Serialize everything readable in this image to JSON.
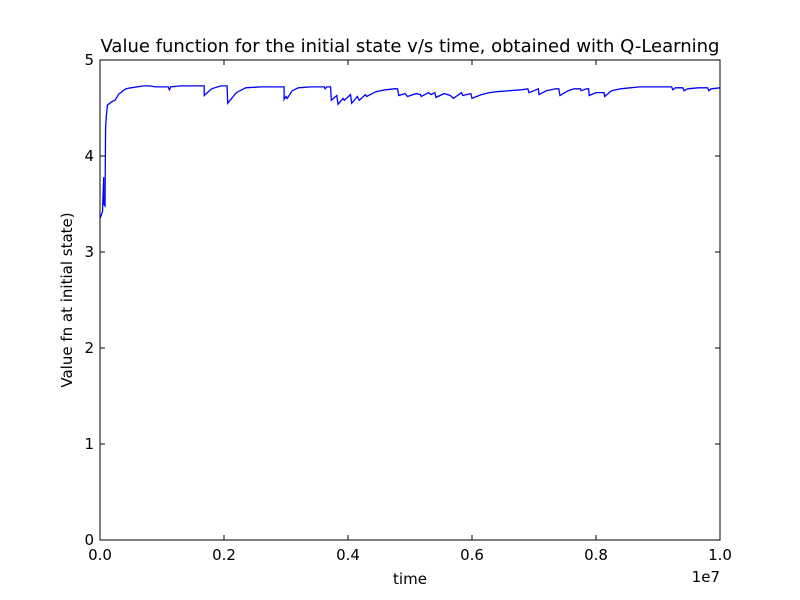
{
  "chart_data": {
    "type": "line",
    "title": "Value function for the initial state v/s time, obtained with Q-Learning",
    "xlabel": "time",
    "ylabel": "Value fn at initial state)",
    "x_offset_label": "1e7",
    "xlim": [
      0.0,
      1.0
    ],
    "ylim": [
      0,
      5
    ],
    "x_ticks": [
      "0.0",
      "0.2",
      "0.4",
      "0.6",
      "0.8",
      "1.0"
    ],
    "y_ticks": [
      "0",
      "1",
      "2",
      "3",
      "4",
      "5"
    ],
    "grid": false,
    "series": [
      {
        "color": "#0000ff",
        "points": [
          [
            0.0,
            3.35
          ],
          [
            0.004,
            3.42
          ],
          [
            0.006,
            3.78
          ],
          [
            0.006,
            3.5
          ],
          [
            0.008,
            3.48
          ],
          [
            0.009,
            4.3
          ],
          [
            0.01,
            4.4
          ],
          [
            0.012,
            4.53
          ],
          [
            0.016,
            4.55
          ],
          [
            0.02,
            4.57
          ],
          [
            0.024,
            4.58
          ],
          [
            0.026,
            4.6
          ],
          [
            0.028,
            4.62
          ],
          [
            0.031,
            4.65
          ],
          [
            0.034,
            4.66
          ],
          [
            0.037,
            4.68
          ],
          [
            0.042,
            4.7
          ],
          [
            0.05,
            4.71
          ],
          [
            0.06,
            4.72
          ],
          [
            0.07,
            4.73
          ],
          [
            0.08,
            4.73
          ],
          [
            0.09,
            4.72
          ],
          [
            0.1,
            4.72
          ],
          [
            0.11,
            4.72
          ],
          [
            0.112,
            4.69
          ],
          [
            0.114,
            4.72
          ],
          [
            0.13,
            4.73
          ],
          [
            0.145,
            4.73
          ],
          [
            0.16,
            4.73
          ],
          [
            0.168,
            4.73
          ],
          [
            0.168,
            4.63
          ],
          [
            0.18,
            4.7
          ],
          [
            0.195,
            4.73
          ],
          [
            0.205,
            4.73
          ],
          [
            0.206,
            4.55
          ],
          [
            0.22,
            4.66
          ],
          [
            0.235,
            4.71
          ],
          [
            0.26,
            4.72
          ],
          [
            0.29,
            4.72
          ],
          [
            0.297,
            4.72
          ],
          [
            0.297,
            4.59
          ],
          [
            0.3,
            4.62
          ],
          [
            0.302,
            4.6
          ],
          [
            0.31,
            4.68
          ],
          [
            0.32,
            4.71
          ],
          [
            0.34,
            4.72
          ],
          [
            0.362,
            4.72
          ],
          [
            0.363,
            4.7
          ],
          [
            0.366,
            4.72
          ],
          [
            0.372,
            4.72
          ],
          [
            0.373,
            4.58
          ],
          [
            0.382,
            4.63
          ],
          [
            0.384,
            4.54
          ],
          [
            0.392,
            4.6
          ],
          [
            0.394,
            4.58
          ],
          [
            0.404,
            4.64
          ],
          [
            0.406,
            4.55
          ],
          [
            0.415,
            4.62
          ],
          [
            0.418,
            4.58
          ],
          [
            0.428,
            4.64
          ],
          [
            0.43,
            4.62
          ],
          [
            0.445,
            4.67
          ],
          [
            0.46,
            4.69
          ],
          [
            0.475,
            4.7
          ],
          [
            0.48,
            4.7
          ],
          [
            0.482,
            4.63
          ],
          [
            0.492,
            4.65
          ],
          [
            0.496,
            4.62
          ],
          [
            0.51,
            4.65
          ],
          [
            0.517,
            4.64
          ],
          [
            0.518,
            4.62
          ],
          [
            0.53,
            4.66
          ],
          [
            0.534,
            4.64
          ],
          [
            0.54,
            4.66
          ],
          [
            0.542,
            4.61
          ],
          [
            0.555,
            4.65
          ],
          [
            0.565,
            4.63
          ],
          [
            0.57,
            4.6
          ],
          [
            0.583,
            4.66
          ],
          [
            0.585,
            4.63
          ],
          [
            0.598,
            4.65
          ],
          [
            0.6,
            4.6
          ],
          [
            0.615,
            4.64
          ],
          [
            0.628,
            4.66
          ],
          [
            0.64,
            4.67
          ],
          [
            0.66,
            4.68
          ],
          [
            0.68,
            4.69
          ],
          [
            0.69,
            4.7
          ],
          [
            0.692,
            4.66
          ],
          [
            0.7,
            4.68
          ],
          [
            0.707,
            4.7
          ],
          [
            0.708,
            4.64
          ],
          [
            0.72,
            4.68
          ],
          [
            0.735,
            4.7
          ],
          [
            0.74,
            4.7
          ],
          [
            0.742,
            4.63
          ],
          [
            0.755,
            4.68
          ],
          [
            0.765,
            4.7
          ],
          [
            0.775,
            4.7
          ],
          [
            0.776,
            4.68
          ],
          [
            0.785,
            4.7
          ],
          [
            0.788,
            4.7
          ],
          [
            0.789,
            4.63
          ],
          [
            0.8,
            4.66
          ],
          [
            0.813,
            4.66
          ],
          [
            0.814,
            4.62
          ],
          [
            0.825,
            4.68
          ],
          [
            0.84,
            4.7
          ],
          [
            0.855,
            4.71
          ],
          [
            0.87,
            4.72
          ],
          [
            0.89,
            4.72
          ],
          [
            0.905,
            4.72
          ],
          [
            0.922,
            4.72
          ],
          [
            0.924,
            4.69
          ],
          [
            0.928,
            4.71
          ],
          [
            0.94,
            4.71
          ],
          [
            0.942,
            4.68
          ],
          [
            0.948,
            4.7
          ],
          [
            0.965,
            4.71
          ],
          [
            0.98,
            4.71
          ],
          [
            0.982,
            4.68
          ],
          [
            0.986,
            4.7
          ],
          [
            1.0,
            4.71
          ]
        ]
      }
    ]
  }
}
